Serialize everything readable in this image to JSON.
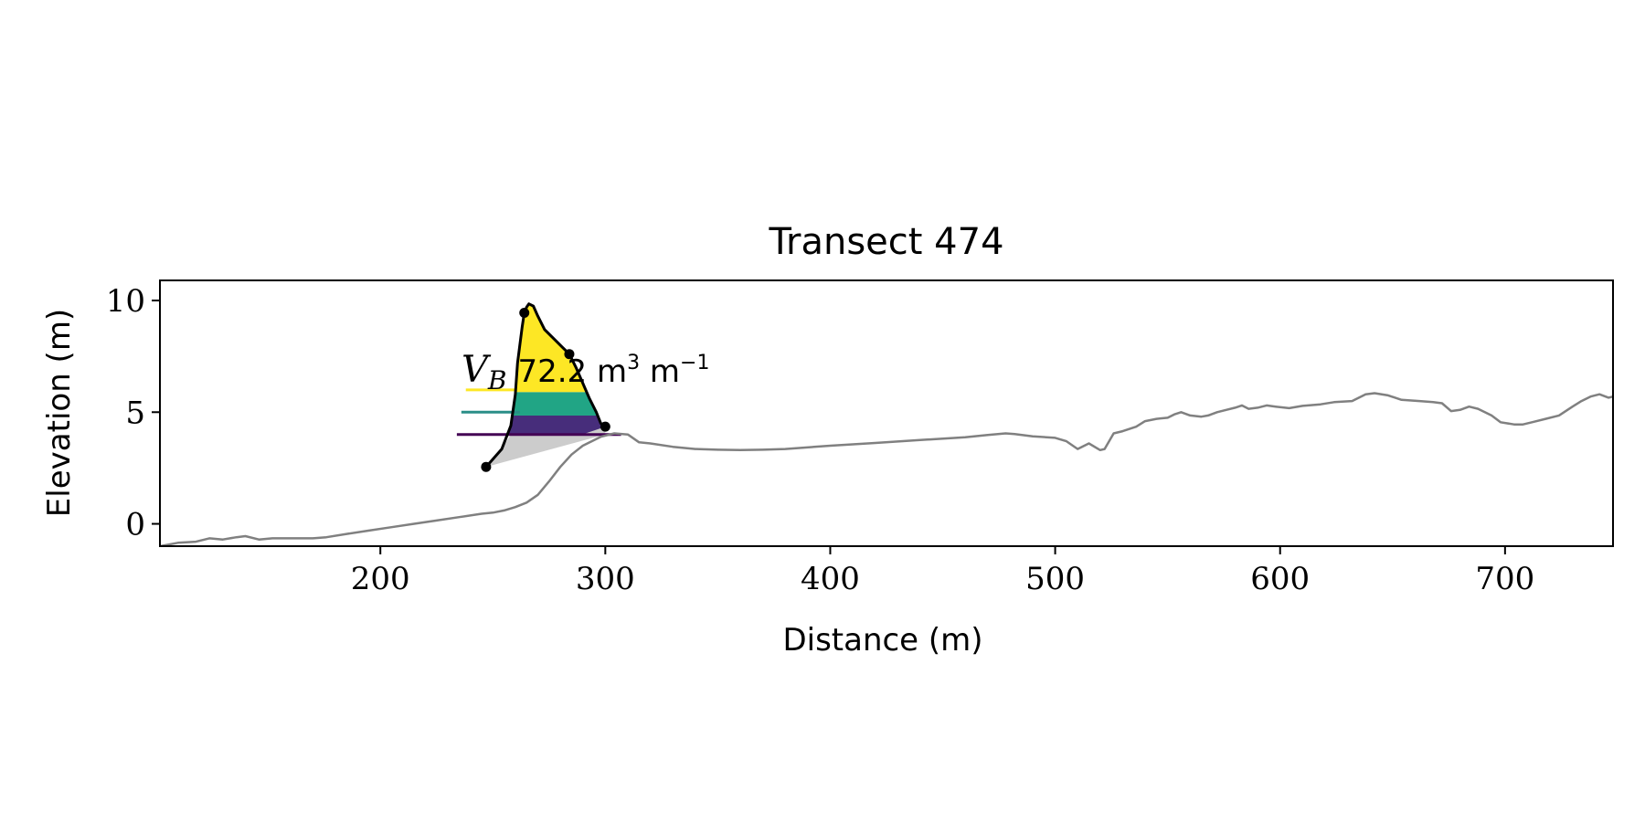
{
  "chart_data": {
    "type": "line",
    "title": "Transect 474",
    "xlabel": "Distance (m)",
    "ylabel": "Elevation (m)",
    "xlim": [
      102,
      748
    ],
    "ylim": [
      -1,
      10.9
    ],
    "xticks": [
      200,
      300,
      400,
      500,
      600,
      700
    ],
    "yticks": [
      0,
      5,
      10
    ],
    "grid": false,
    "annotation": {
      "symbol": "V",
      "subscript": "B",
      "value_text": "72.2 m",
      "unit_sup": "3",
      "unit_rest": " m",
      "unit_exp": "−1"
    },
    "profile": {
      "color": "#808080",
      "points": [
        [
          102,
          -1.0
        ],
        [
          110,
          -0.85
        ],
        [
          118,
          -0.8
        ],
        [
          124,
          -0.65
        ],
        [
          130,
          -0.7
        ],
        [
          136,
          -0.6
        ],
        [
          140,
          -0.55
        ],
        [
          146,
          -0.7
        ],
        [
          152,
          -0.65
        ],
        [
          160,
          -0.65
        ],
        [
          170,
          -0.65
        ],
        [
          176,
          -0.6
        ],
        [
          185,
          -0.45
        ],
        [
          195,
          -0.3
        ],
        [
          205,
          -0.15
        ],
        [
          215,
          0.0
        ],
        [
          225,
          0.15
        ],
        [
          235,
          0.3
        ],
        [
          245,
          0.45
        ],
        [
          250,
          0.5
        ],
        [
          255,
          0.6
        ],
        [
          260,
          0.75
        ],
        [
          265,
          0.95
        ],
        [
          270,
          1.3
        ],
        [
          275,
          1.9
        ],
        [
          280,
          2.55
        ],
        [
          285,
          3.1
        ],
        [
          290,
          3.5
        ],
        [
          298,
          3.9
        ],
        [
          304,
          4.05
        ],
        [
          310,
          4.0
        ],
        [
          315,
          3.65
        ],
        [
          320,
          3.6
        ],
        [
          330,
          3.45
        ],
        [
          340,
          3.35
        ],
        [
          350,
          3.32
        ],
        [
          360,
          3.3
        ],
        [
          370,
          3.32
        ],
        [
          380,
          3.35
        ],
        [
          400,
          3.5
        ],
        [
          420,
          3.62
        ],
        [
          440,
          3.75
        ],
        [
          460,
          3.88
        ],
        [
          470,
          3.98
        ],
        [
          478,
          4.05
        ],
        [
          482,
          4.02
        ],
        [
          490,
          3.92
        ],
        [
          500,
          3.85
        ],
        [
          505,
          3.7
        ],
        [
          510,
          3.35
        ],
        [
          515,
          3.6
        ],
        [
          520,
          3.3
        ],
        [
          522,
          3.35
        ],
        [
          526,
          4.05
        ],
        [
          530,
          4.15
        ],
        [
          536,
          4.35
        ],
        [
          540,
          4.6
        ],
        [
          545,
          4.7
        ],
        [
          550,
          4.75
        ],
        [
          553,
          4.9
        ],
        [
          556,
          5.0
        ],
        [
          560,
          4.85
        ],
        [
          565,
          4.8
        ],
        [
          568,
          4.85
        ],
        [
          572,
          5.0
        ],
        [
          576,
          5.1
        ],
        [
          580,
          5.2
        ],
        [
          583,
          5.3
        ],
        [
          586,
          5.15
        ],
        [
          590,
          5.2
        ],
        [
          594,
          5.3
        ],
        [
          598,
          5.25
        ],
        [
          604,
          5.18
        ],
        [
          610,
          5.28
        ],
        [
          618,
          5.35
        ],
        [
          624,
          5.45
        ],
        [
          632,
          5.5
        ],
        [
          638,
          5.8
        ],
        [
          642,
          5.85
        ],
        [
          648,
          5.75
        ],
        [
          654,
          5.55
        ],
        [
          662,
          5.5
        ],
        [
          668,
          5.45
        ],
        [
          672,
          5.4
        ],
        [
          676,
          5.05
        ],
        [
          680,
          5.1
        ],
        [
          684,
          5.25
        ],
        [
          688,
          5.15
        ],
        [
          694,
          4.85
        ],
        [
          698,
          4.55
        ],
        [
          704,
          4.45
        ],
        [
          708,
          4.45
        ],
        [
          712,
          4.55
        ],
        [
          718,
          4.7
        ],
        [
          724,
          4.85
        ],
        [
          730,
          5.25
        ],
        [
          734,
          5.5
        ],
        [
          738,
          5.7
        ],
        [
          742,
          5.8
        ],
        [
          746,
          5.65
        ],
        [
          750,
          5.75
        ],
        [
          752,
          5.6
        ],
        [
          756,
          5.0
        ],
        [
          760,
          4.3
        ],
        [
          762,
          4.0
        ],
        [
          765,
          4.0
        ]
      ]
    },
    "dune_outline": {
      "color": "#000000",
      "points": [
        [
          247,
          2.55
        ],
        [
          254,
          3.35
        ],
        [
          258,
          4.4
        ],
        [
          260,
          5.8
        ],
        [
          261,
          7.2
        ],
        [
          263,
          8.8
        ],
        [
          264,
          9.45
        ],
        [
          265,
          9.7
        ],
        [
          266,
          9.85
        ],
        [
          268,
          9.75
        ],
        [
          270,
          9.3
        ],
        [
          273,
          8.7
        ],
        [
          277,
          8.3
        ],
        [
          281,
          7.9
        ],
        [
          284,
          7.6
        ],
        [
          287,
          7.0
        ],
        [
          290,
          6.3
        ],
        [
          293,
          5.6
        ],
        [
          296,
          5.0
        ],
        [
          298,
          4.5
        ],
        [
          300,
          4.35
        ]
      ]
    },
    "markers": [
      [
        247,
        2.55
      ],
      [
        264,
        9.45
      ],
      [
        284,
        7.6
      ],
      [
        300,
        4.35
      ]
    ],
    "base_wedge": {
      "color": "#cccccc",
      "points": [
        [
          247,
          2.55
        ],
        [
          300,
          4.0
        ],
        [
          300,
          4.35
        ],
        [
          298,
          4.5
        ],
        [
          258,
          4.0
        ],
        [
          254,
          3.35
        ]
      ]
    },
    "volume_bands": [
      {
        "from": 4.0,
        "to": 4.85,
        "color": "#472d7b"
      },
      {
        "from": 4.85,
        "to": 5.9,
        "color": "#21a585"
      },
      {
        "from": 5.9,
        "to": 9.9,
        "color": "#fde725"
      }
    ],
    "levels": [
      {
        "y": 4.0,
        "x0": 234,
        "x1": 307,
        "color": "#440154"
      },
      {
        "y": 5.0,
        "x0": 236,
        "x1": 262,
        "color": "#2a8e87"
      },
      {
        "y": 6.0,
        "x0": 238,
        "x1": 262,
        "color": "#fde725"
      }
    ]
  }
}
